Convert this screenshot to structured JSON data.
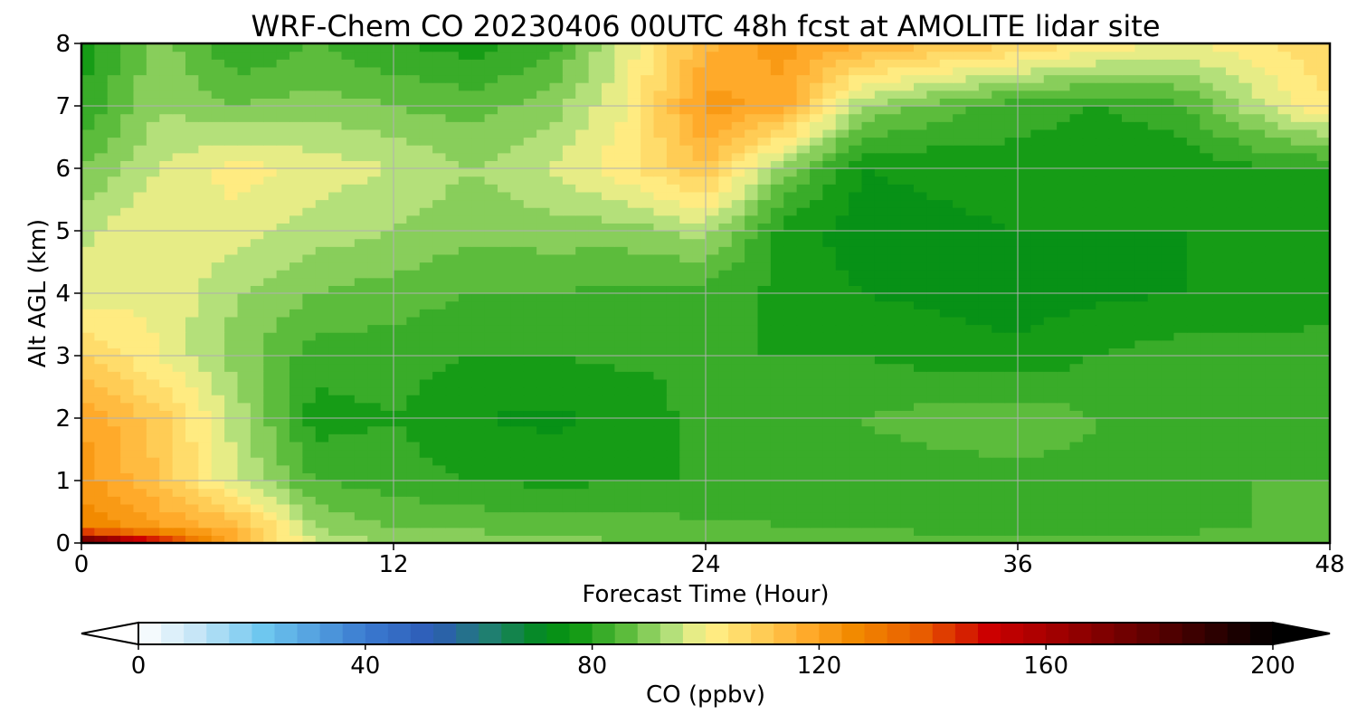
{
  "chart_data": {
    "type": "heatmap",
    "title": "WRF-Chem CO  20230406 00UTC 48h fcst at AMOLITE lidar site",
    "xlabel": "Forecast Time (Hour)",
    "ylabel": "Alt AGL (km)",
    "xlim": [
      0,
      48
    ],
    "ylim": [
      0,
      8
    ],
    "x_ticks": [
      "0",
      "12",
      "24",
      "36",
      "48"
    ],
    "y_ticks": [
      "0",
      "1",
      "2",
      "3",
      "4",
      "5",
      "6",
      "7",
      "8"
    ],
    "grid": true,
    "x": [
      0,
      3,
      6,
      9,
      12,
      15,
      18,
      21,
      24,
      27,
      30,
      33,
      36,
      39,
      42,
      45,
      48
    ],
    "y": [
      0,
      0.25,
      1,
      2,
      3,
      4,
      5,
      6,
      7,
      8
    ],
    "z_ppbv": [
      [
        190,
        150,
        118,
        95,
        92,
        92,
        90,
        88,
        86,
        86,
        86,
        86,
        86,
        86,
        86,
        86,
        86
      ],
      [
        128,
        120,
        115,
        92,
        88,
        87,
        86,
        86,
        85,
        84,
        84,
        83,
        83,
        83,
        83,
        84,
        85
      ],
      [
        122,
        112,
        96,
        84,
        82,
        80,
        79,
        80,
        80,
        82,
        82,
        82,
        82,
        83,
        83,
        84,
        84
      ],
      [
        120,
        110,
        94,
        78,
        80,
        76,
        75,
        77,
        82,
        82,
        84,
        86,
        87,
        84,
        83,
        83,
        83
      ],
      [
        108,
        100,
        90,
        82,
        82,
        80,
        80,
        81,
        80,
        80,
        80,
        78,
        77,
        80,
        82,
        82,
        82
      ],
      [
        98,
        99,
        92,
        88,
        86,
        84,
        84,
        83,
        82,
        79,
        76,
        75,
        74,
        75,
        76,
        76,
        78
      ],
      [
        95,
        100,
        98,
        94,
        92,
        89,
        90,
        90,
        94,
        78,
        74,
        75,
        76,
        76,
        76,
        76,
        78
      ],
      [
        88,
        96,
        102,
        98,
        96,
        92,
        96,
        103,
        112,
        90,
        76,
        77,
        78,
        77,
        77,
        79,
        80
      ],
      [
        80,
        92,
        88,
        90,
        88,
        86,
        90,
        100,
        122,
        118,
        92,
        86,
        82,
        80,
        82,
        94,
        104
      ],
      [
        78,
        90,
        80,
        84,
        80,
        78,
        82,
        98,
        115,
        122,
        116,
        112,
        108,
        103,
        100,
        102,
        108
      ]
    ],
    "colorbar": {
      "label": "CO  (ppbv)",
      "min": 0,
      "max": 200,
      "ticks": [
        "0",
        "40",
        "80",
        "120",
        "160",
        "200"
      ],
      "extend": "both",
      "stops": [
        [
          0,
          "#ffffff"
        ],
        [
          10,
          "#c7e6f7"
        ],
        [
          22,
          "#6ec7ef"
        ],
        [
          40,
          "#3a7ad0"
        ],
        [
          52,
          "#2d5bb6"
        ],
        [
          62,
          "#1f7f70"
        ],
        [
          72,
          "#008c16"
        ],
        [
          78,
          "#169c16"
        ],
        [
          86,
          "#5cbc3c"
        ],
        [
          94,
          "#b4e07a"
        ],
        [
          100,
          "#fff28c"
        ],
        [
          108,
          "#ffd460"
        ],
        [
          118,
          "#ffaa2a"
        ],
        [
          126,
          "#f28a00"
        ],
        [
          138,
          "#e85c00"
        ],
        [
          150,
          "#cc0000"
        ],
        [
          162,
          "#a00000"
        ],
        [
          178,
          "#600000"
        ],
        [
          200,
          "#000000"
        ]
      ]
    }
  }
}
